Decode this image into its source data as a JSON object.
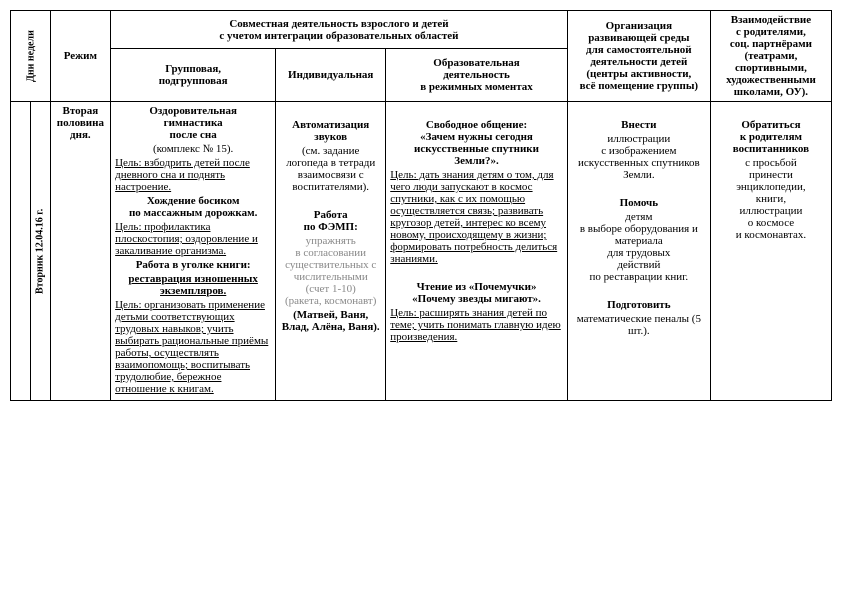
{
  "header": {
    "day_week": "Дни недели",
    "rezhim": "Режим",
    "joint_activity": "Совместная деятельность взрослого и детей\nс учетом интеграции образовательных областей",
    "group": "Групповая,\nподгрупповая",
    "individual": "Индивидуальная",
    "edu_moments": "Образовательная\nдеятельность\nв режимных моментах",
    "org_env": "Организация\nразвивающей среды\nдля самостоятельной\nдеятельности детей\n(центры активности,\nвсё помещение группы)",
    "interaction": "Взаимодействие\nс родителями,\nсоц. партнёрами\n(театрами,\nспортивными,\nхудожественными\nшколами, ОУ)."
  },
  "row": {
    "date_label": "Вторник 12.04.16 г.",
    "rezhim_val": "Вторая\nполовина\nдня.",
    "group_cell": {
      "t1_b": "Оздоровительная\nгимнастика\nпосле сна",
      "t1_plain": "(комплекс № 15).",
      "t1_goal": "Цель: взбодрить детей после дневного сна и поднять настроение.",
      "t2_b": "Хождение босиком\nпо массажным дорожкам.",
      "t2_goal": "Цель: профилактика плоскостопия; оздоровление и закаливание организма.",
      "t3_b": "Работа в уголке книги:",
      "t3_bu": "реставрация изношенных\nэкземпляров.",
      "t3_goal": "Цель: организовать применение детьми соответствующих трудовых навыков; учить выбирать рациональные приёмы работы, осуществлять взаимопомощь; воспитывать трудолюбие, бережное отношение к книгам."
    },
    "ind_cell": {
      "t1_b": "Автоматизация\nзвуков",
      "t1_plain": "(см. задание логопеда в тетради взаимосвязи с воспитателями).",
      "t2_b": "Работа\nпо ФЭМП:",
      "t2_gray": "упражнять\nв согласовании существительных с числительными\n(счет 1-10)\n(ракета, космонавт)",
      "names": "(Матвей, Ваня, Влад, Алёна, Ваня)."
    },
    "edu_cell": {
      "t1_b": "Свободное общение:\n«Зачем нужны сегодня\nискусственные спутники\nЗемли?».",
      "t1_goal": "Цель: дать знания детям о том, для чего люди запускают в космос спутники, как с их помощью осуществляется связь; развивать кругозор детей, интерес ко всему новому, происходящему в жизни; формировать потребность делиться знаниями.",
      "t2_b": "Чтение из «Почемучки»\n«Почему звезды мигают».",
      "t2_goal": "Цель: расширять знания детей по теме; учить понимать главную идею произведения."
    },
    "org_cell": {
      "t1_b": "Внести",
      "t1_plain": "иллюстрации\nс изображением искусственных спутников Земли.",
      "t2_b": "Помочь",
      "t2_plain": "детям\nв выборе оборудования и материала\nдля трудовых\nдействий\nпо реставрации книг.",
      "t3_b": "Подготовить",
      "t3_plain": "математические пеналы (5 шт.)."
    },
    "int_cell": {
      "t1_b": "Обратиться\nк родителям\nвоспитанников",
      "t1_plain": "с просьбой\nпринести\nэнциклопедии,\nкниги,\nиллюстрации\nо космосе\nи космонавтах."
    }
  }
}
